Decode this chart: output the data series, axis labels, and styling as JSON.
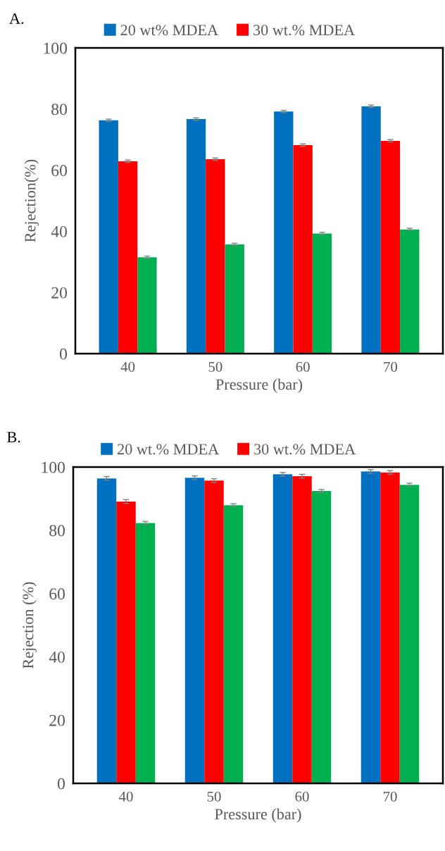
{
  "chart_data": [
    {
      "type": "bar",
      "title": "A.",
      "xlabel": "Pressure (bar)",
      "ylabel": "Rejection(%)",
      "categories": [
        "40",
        "50",
        "60",
        "70"
      ],
      "ylim": [
        0,
        100
      ],
      "yticks": [
        0,
        20,
        40,
        60,
        80,
        100
      ],
      "grid": false,
      "legend": "top",
      "series": [
        {
          "name": "20 wt% MDEA",
          "color": "#0070c0",
          "values": [
            76.3,
            76.7,
            79.2,
            80.9
          ],
          "errors": [
            0.4,
            0.4,
            0.4,
            0.4
          ]
        },
        {
          "name": "30 wt.% MDEA",
          "color": "#ff0000",
          "values": [
            62.9,
            63.6,
            68.2,
            69.6
          ],
          "errors": [
            0.4,
            0.4,
            0.4,
            0.4
          ]
        },
        {
          "color": "#00b050",
          "values": [
            31.5,
            35.7,
            39.3,
            40.6
          ],
          "errors": [
            0.4,
            0.4,
            0.4,
            0.4
          ]
        }
      ]
    },
    {
      "type": "bar",
      "title": "B.",
      "xlabel": "Pressure (bar)",
      "ylabel": "Rejection (%)",
      "categories": [
        "40",
        "50",
        "60",
        "70"
      ],
      "ylim": [
        0,
        100
      ],
      "yticks": [
        0,
        20,
        40,
        60,
        80,
        100
      ],
      "grid": false,
      "legend": "top",
      "series": [
        {
          "name": "20 wt.% MDEA",
          "color": "#0070c0",
          "values": [
            96.4,
            96.6,
            97.7,
            98.6
          ],
          "errors": [
            0.6,
            0.6,
            0.6,
            0.6
          ]
        },
        {
          "name": "30 wt.% MDEA",
          "color": "#ff0000",
          "values": [
            89.1,
            95.7,
            97.1,
            98.3
          ],
          "errors": [
            0.6,
            0.6,
            0.6,
            0.6
          ]
        },
        {
          "color": "#00b050",
          "values": [
            82.3,
            87.9,
            92.4,
            94.4
          ],
          "errors": [
            0.5,
            0.5,
            0.5,
            0.5
          ]
        }
      ]
    }
  ]
}
